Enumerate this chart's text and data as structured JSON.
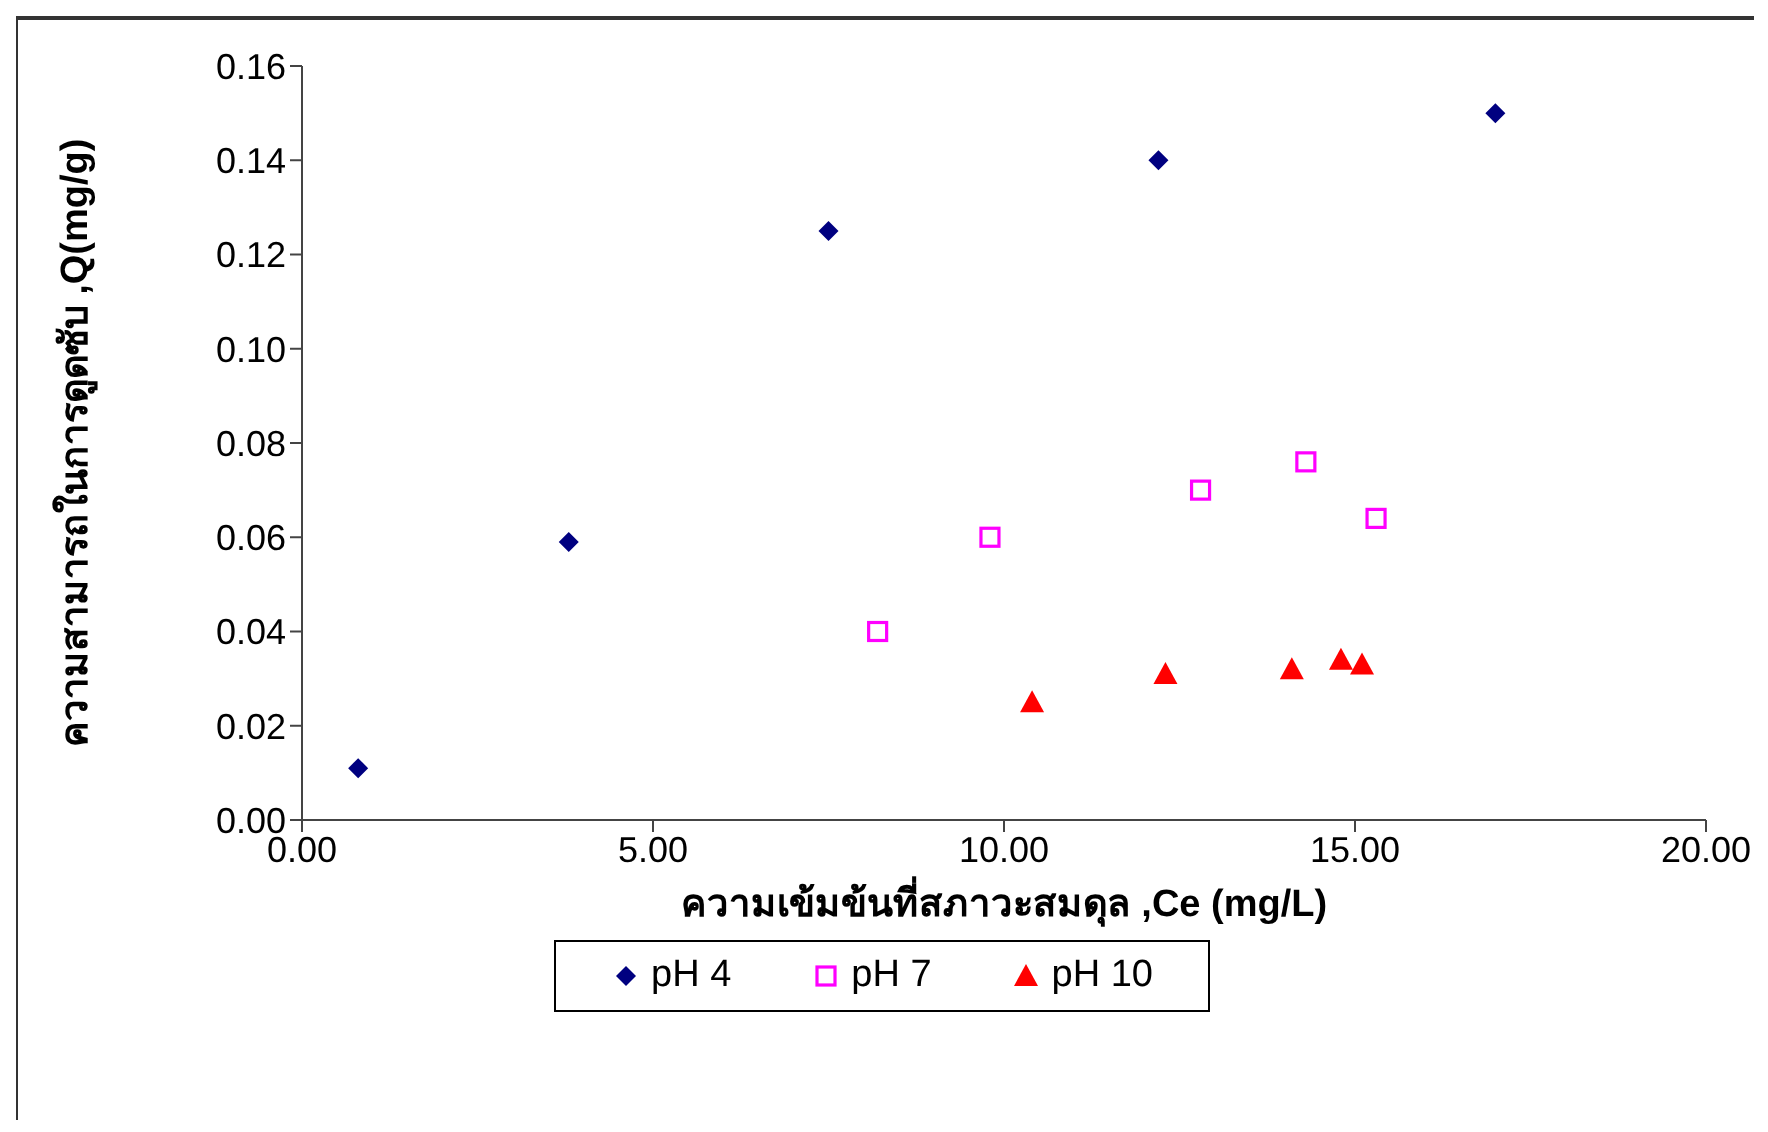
{
  "chart_data": {
    "type": "scatter",
    "xlabel": "ความเข้มข้นที่สภาวะสมดุล ,Ce (mg/L)",
    "ylabel": "ความสามารถในการดูดซับ ,Q(mg/g)",
    "xlim": [
      0,
      20
    ],
    "xticks": [
      {
        "value": 0,
        "label": "0.00"
      },
      {
        "value": 5,
        "label": "5.00"
      },
      {
        "value": 10,
        "label": "10.00"
      },
      {
        "value": 15,
        "label": "15.00"
      },
      {
        "value": 20,
        "label": "20.00"
      }
    ],
    "ylim": [
      0,
      0.16
    ],
    "yticks": [
      {
        "value": 0,
        "label": "0.00"
      },
      {
        "value": 0.02,
        "label": "0.02"
      },
      {
        "value": 0.04,
        "label": "0.04"
      },
      {
        "value": 0.06,
        "label": "0.06"
      },
      {
        "value": 0.08,
        "label": "0.08"
      },
      {
        "value": 0.1,
        "label": "0.10"
      },
      {
        "value": 0.12,
        "label": "0.12"
      },
      {
        "value": 0.14,
        "label": "0.14"
      },
      {
        "value": 0.16,
        "label": "0.16"
      }
    ],
    "grid": false,
    "legend": "bottom",
    "series": [
      {
        "name": "pH 4",
        "color": "#000080",
        "marker": "diamond",
        "x": [
          0.8,
          3.8,
          7.5,
          12.2,
          17.0
        ],
        "values": [
          0.011,
          0.059,
          0.125,
          0.14,
          0.15
        ]
      },
      {
        "name": "pH 7",
        "color": "#ff00ff",
        "marker": "square",
        "x": [
          8.2,
          9.8,
          12.8,
          14.3,
          15.3
        ],
        "values": [
          0.04,
          0.06,
          0.07,
          0.076,
          0.064
        ]
      },
      {
        "name": "pH 10",
        "color": "#ff0000",
        "marker": "triangle",
        "x": [
          10.4,
          12.3,
          14.1,
          14.8,
          15.1
        ],
        "values": [
          0.025,
          0.031,
          0.032,
          0.034,
          0.033
        ]
      }
    ]
  }
}
